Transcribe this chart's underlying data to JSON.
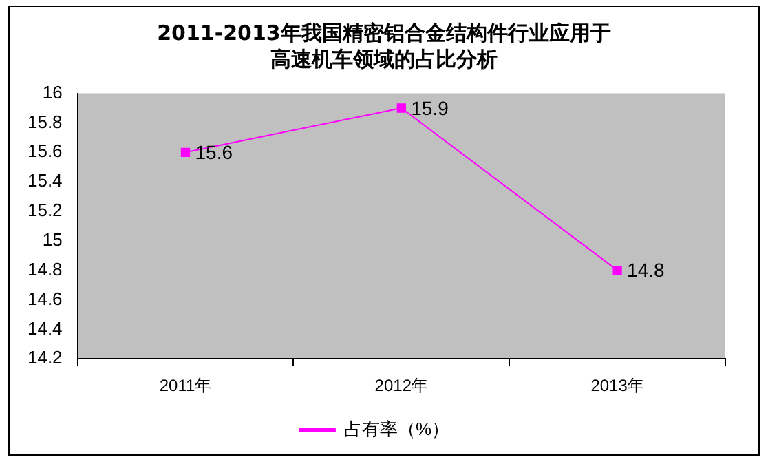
{
  "chart_data": {
    "type": "line",
    "title": "2011-2013年我国精密铝合金结构件行业应用于高速机车领域的占比分析",
    "categories": [
      "2011年",
      "2012年",
      "2013年"
    ],
    "series": [
      {
        "name": "占有率（%）",
        "color": "#ff00ff",
        "values": [
          15.6,
          15.9,
          14.8
        ]
      }
    ],
    "ylim": [
      14.2,
      16
    ],
    "yticks": [
      14.2,
      14.4,
      14.6,
      14.8,
      15,
      15.2,
      15.4,
      15.6,
      15.8,
      16
    ],
    "grid": false,
    "legend": "bottom",
    "marker": "square",
    "line_style": "solid",
    "data_labels": true
  }
}
